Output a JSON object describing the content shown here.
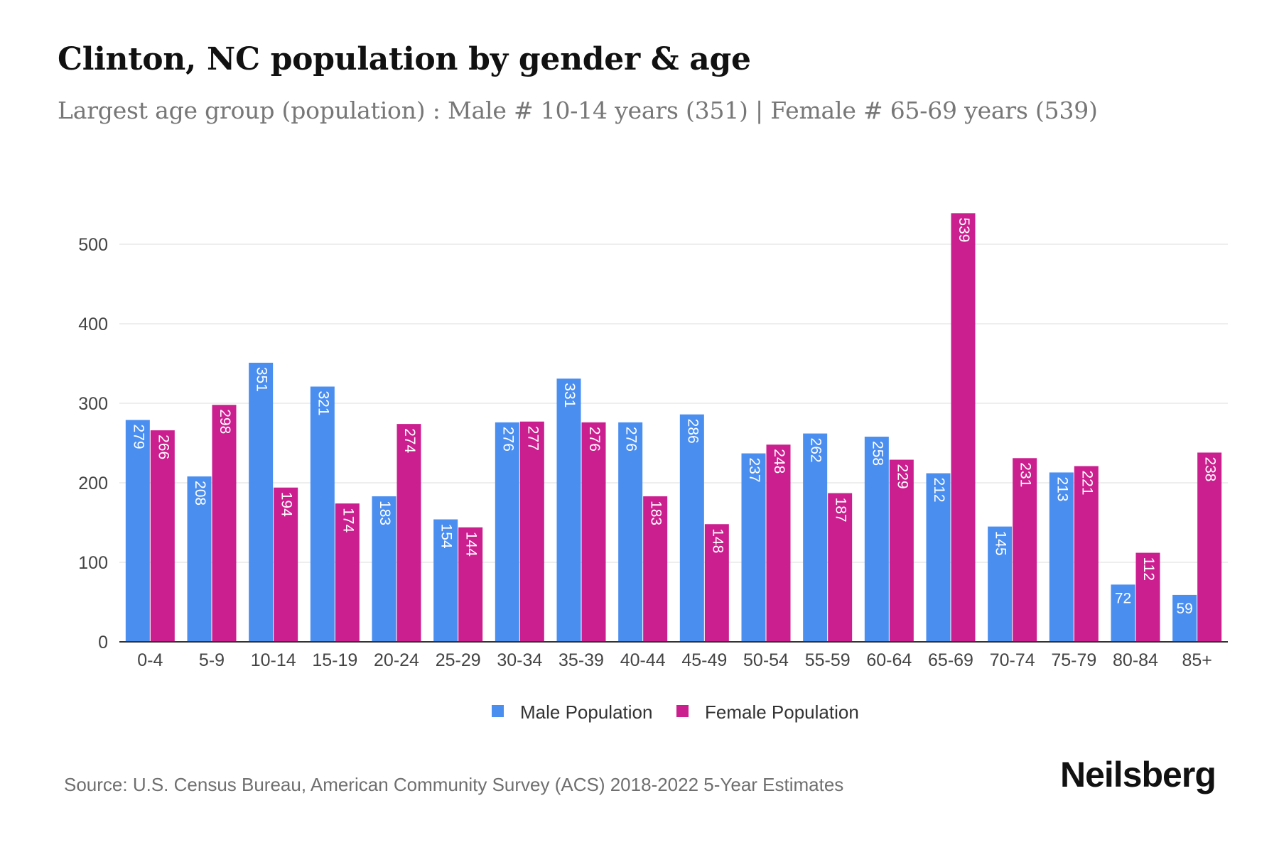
{
  "title": "Clinton, NC population by gender & age",
  "subtitle": "Largest age group (population) : Male # 10-14 years (351) | Female # 65-69 years (539)",
  "source": "Source: U.S. Census Bureau, American Community Survey (ACS) 2018-2022 5-Year Estimates",
  "brand": "Neilsberg",
  "colors": {
    "male": "#4a8ef0",
    "female": "#cc1f8f",
    "grid": "#e9e9e9",
    "axis": "#333333",
    "tick_text": "#444444"
  },
  "chart_data": {
    "type": "bar",
    "title": "Clinton, NC population by gender & age",
    "xlabel": "",
    "ylabel": "",
    "ylim": [
      0,
      560
    ],
    "yticks": [
      0,
      100,
      200,
      300,
      400,
      500
    ],
    "grid": true,
    "legend_position": "bottom-center",
    "categories": [
      "0-4",
      "5-9",
      "10-14",
      "15-19",
      "20-24",
      "25-29",
      "30-34",
      "35-39",
      "40-44",
      "45-49",
      "50-54",
      "55-59",
      "60-64",
      "65-69",
      "70-74",
      "75-79",
      "80-84",
      "85+"
    ],
    "series": [
      {
        "name": "Male Population",
        "values": [
          279,
          208,
          351,
          321,
          183,
          154,
          276,
          331,
          276,
          286,
          237,
          262,
          258,
          212,
          145,
          213,
          72,
          59
        ]
      },
      {
        "name": "Female Population",
        "values": [
          266,
          298,
          194,
          174,
          274,
          144,
          277,
          276,
          183,
          148,
          248,
          187,
          229,
          539,
          231,
          221,
          112,
          238
        ]
      }
    ]
  }
}
